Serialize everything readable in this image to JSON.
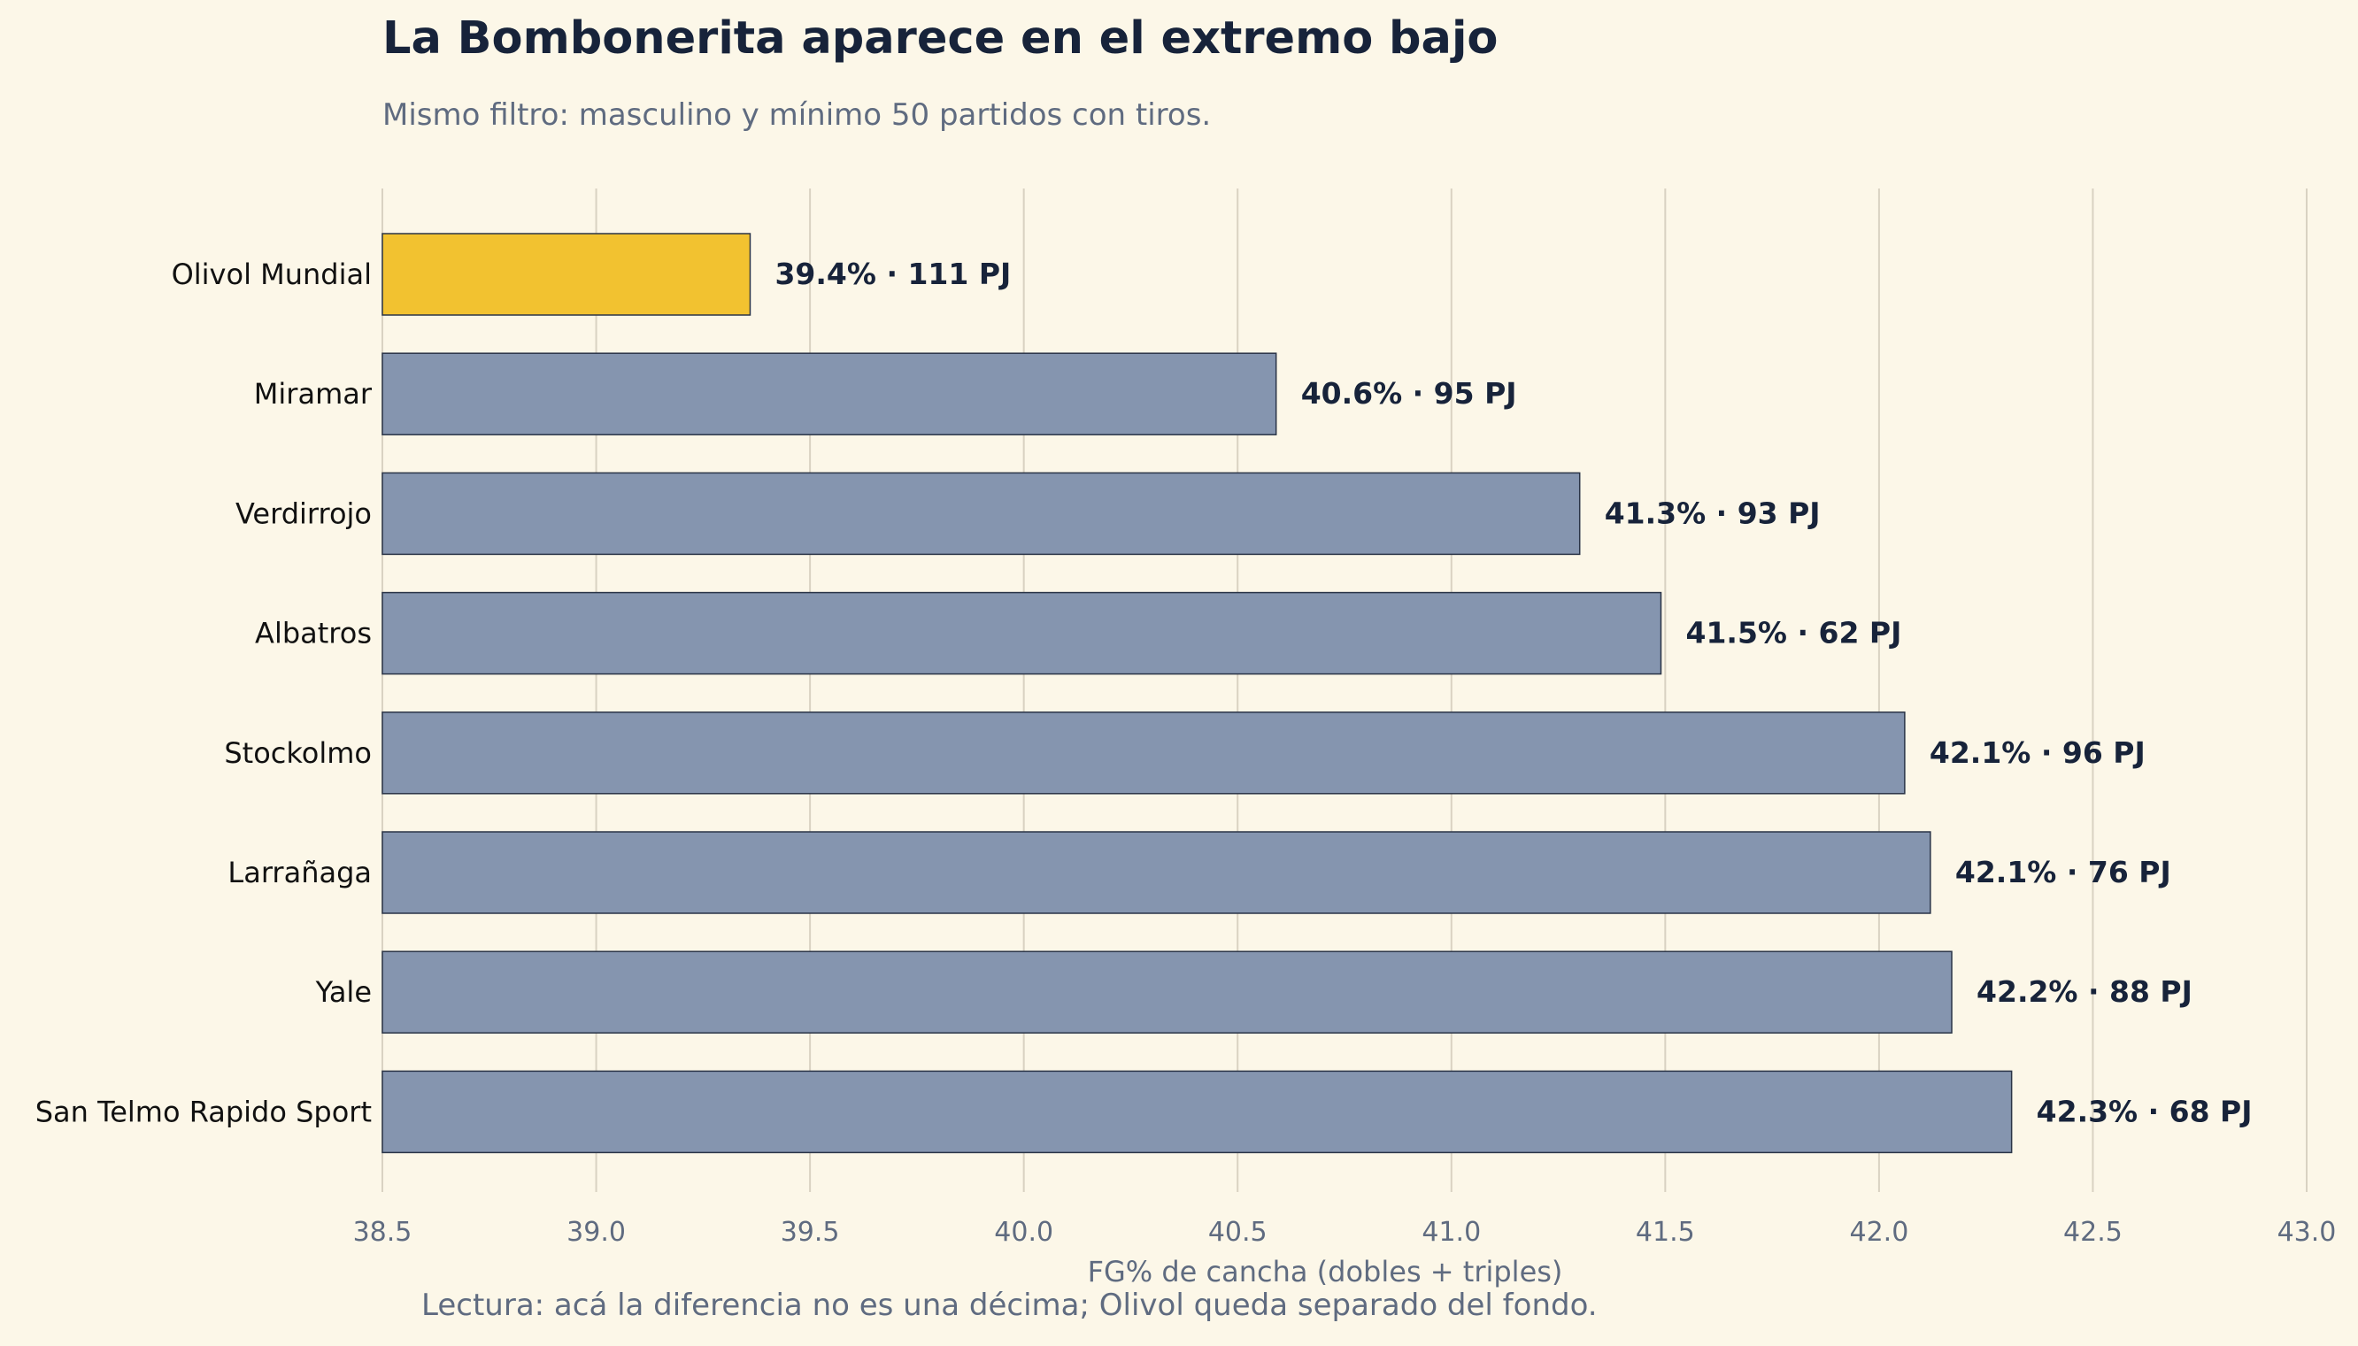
{
  "title": "La Bombonerita aparece en el extremo bajo",
  "subtitle": "Mismo filtro: masculino y mínimo 50 partidos con tiros.",
  "footnote": "Lectura: acá la diferencia no es una décima; Olivol queda separado del fondo.",
  "colors": {
    "background": "#fcf7e8",
    "highlight": "#f2c230",
    "bar": "#8595af",
    "bar_edge": "#2a3447",
    "grid": "#d9d2c2",
    "title": "#17233a",
    "muted": "#5f6b80"
  },
  "chart_data": {
    "type": "bar",
    "orientation": "horizontal",
    "xlabel": "FG% de cancha (dobles + triples)",
    "ylabel": "",
    "xlim": [
      38.5,
      43.0
    ],
    "xticks": [
      "38.5",
      "39.0",
      "39.5",
      "40.0",
      "40.5",
      "41.0",
      "41.5",
      "42.0",
      "42.5",
      "43.0"
    ],
    "grid": "vertical",
    "categories": [
      "Olivol Mundial",
      "Miramar",
      "Verdirrojo",
      "Albatros",
      "Stockolmo",
      "Larrañaga",
      "Yale",
      "San Telmo Rapido Sport"
    ],
    "values": [
      39.36,
      40.59,
      41.3,
      41.49,
      42.06,
      42.12,
      42.17,
      42.31
    ],
    "labels": [
      "39.4% · 111 PJ",
      "40.6% · 95 PJ",
      "41.3% · 93 PJ",
      "41.5% · 62 PJ",
      "42.1% · 96 PJ",
      "42.1% · 76 PJ",
      "42.2% · 88 PJ",
      "42.3% · 68 PJ"
    ],
    "highlight": "Olivol Mundial"
  }
}
